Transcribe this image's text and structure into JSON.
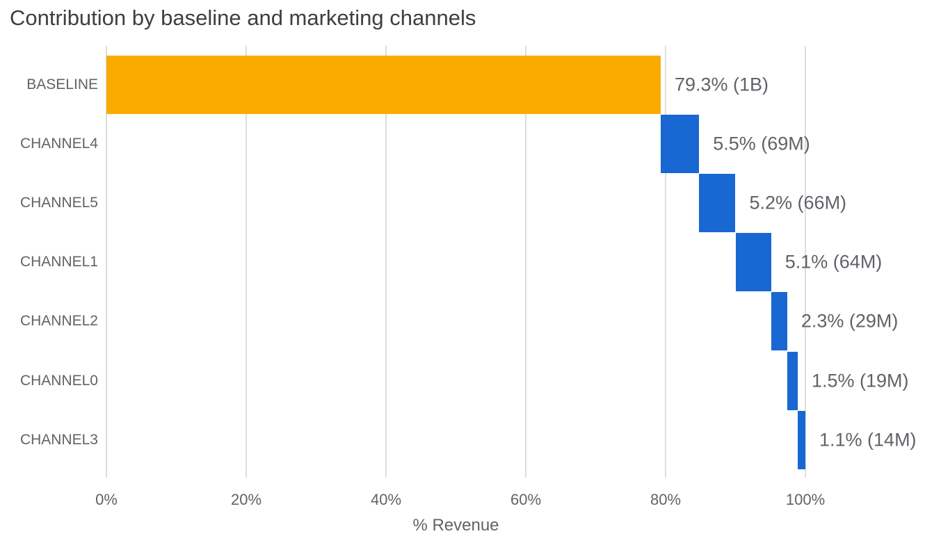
{
  "title": "Contribution by baseline and marketing channels",
  "colors": {
    "baseline_bar": "#F9AB00",
    "channel_bar": "#1967D2",
    "grid": "#DDDDDD",
    "title_text": "#3C4043",
    "axis_text": "#5F6368",
    "background": "#FFFFFF"
  },
  "chart_data": {
    "type": "bar",
    "variant": "horizontal-waterfall",
    "title": "Contribution by baseline and marketing channels",
    "xlabel": "% Revenue",
    "xlim": [
      0,
      117
    ],
    "grid": "vertical",
    "legend": "none",
    "x_ticks": [
      {
        "value": 0,
        "label": "0%"
      },
      {
        "value": 20,
        "label": "20%"
      },
      {
        "value": 40,
        "label": "40%"
      },
      {
        "value": 60,
        "label": "60%"
      },
      {
        "value": 80,
        "label": "80%"
      },
      {
        "value": 100,
        "label": "100%"
      }
    ],
    "bars": [
      {
        "category": "BASELINE",
        "start": 0,
        "value": 79.3,
        "end": 79.3,
        "annotation": "79.3% (1B)",
        "color_key": "baseline_bar"
      },
      {
        "category": "CHANNEL4",
        "start": 79.3,
        "value": 5.5,
        "end": 84.8,
        "annotation": "5.5% (69M)",
        "color_key": "channel_bar"
      },
      {
        "category": "CHANNEL5",
        "start": 84.8,
        "value": 5.2,
        "end": 90.0,
        "annotation": "5.2% (66M)",
        "color_key": "channel_bar"
      },
      {
        "category": "CHANNEL1",
        "start": 90.0,
        "value": 5.1,
        "end": 95.1,
        "annotation": "5.1% (64M)",
        "color_key": "channel_bar"
      },
      {
        "category": "CHANNEL2",
        "start": 95.1,
        "value": 2.3,
        "end": 97.4,
        "annotation": "2.3% (29M)",
        "color_key": "channel_bar"
      },
      {
        "category": "CHANNEL0",
        "start": 97.4,
        "value": 1.5,
        "end": 98.9,
        "annotation": "1.5% (19M)",
        "color_key": "channel_bar"
      },
      {
        "category": "CHANNEL3",
        "start": 98.9,
        "value": 1.1,
        "end": 100.0,
        "annotation": "1.1% (14M)",
        "color_key": "channel_bar"
      }
    ]
  }
}
